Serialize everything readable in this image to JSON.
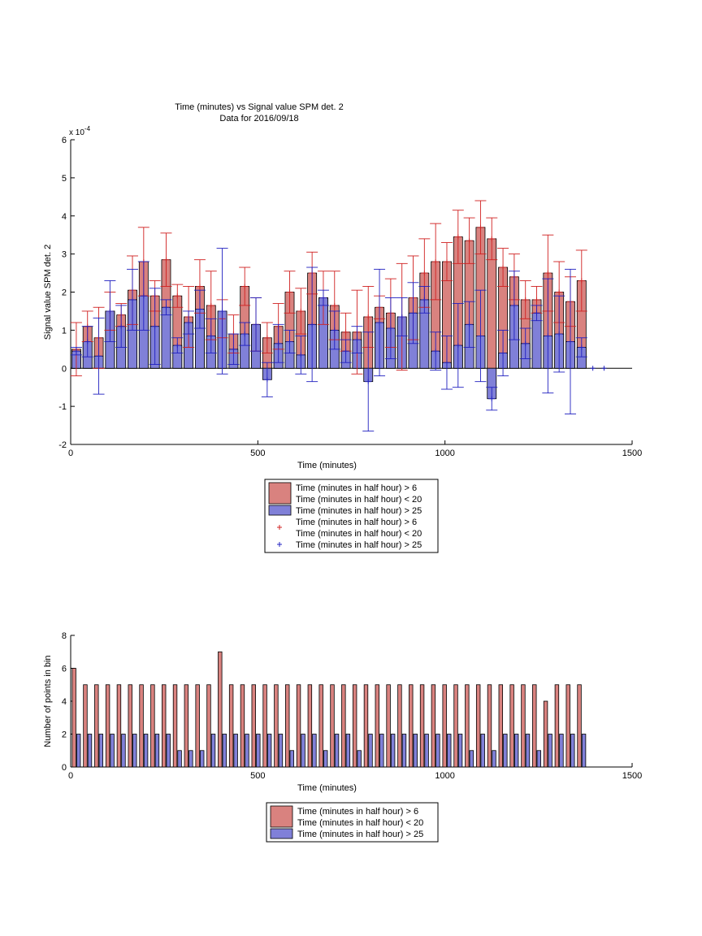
{
  "figure": {
    "title": "Time (minutes) vs Signal value SPM det. 2",
    "subtitle": "Data for 2016/09/18"
  },
  "chart_data": [
    {
      "type": "bar",
      "xlabel": "Time (minutes)",
      "ylabel": "Signal value SPM det. 2",
      "exponent_label": "x 10",
      "exponent_power": "-4",
      "xlim": [
        0,
        1500
      ],
      "ylim": [
        -2,
        6
      ],
      "xticks": [
        "0",
        "500",
        "1000",
        "1500"
      ],
      "yticks": [
        "-2",
        "-1",
        "0",
        "1",
        "2",
        "3",
        "4",
        "5",
        "6"
      ],
      "x": [
        15,
        45,
        75,
        105,
        135,
        165,
        195,
        225,
        255,
        285,
        315,
        345,
        375,
        405,
        435,
        465,
        495,
        525,
        555,
        585,
        615,
        645,
        675,
        705,
        735,
        765,
        795,
        825,
        855,
        885,
        915,
        945,
        975,
        1005,
        1035,
        1065,
        1095,
        1125,
        1155,
        1185,
        1215,
        1245,
        1275,
        1305,
        1335,
        1365
      ],
      "series": [
        {
          "name": "Time (minutes in half hour) > 6\nTime (minutes in half hour) < 20",
          "color": "#d9827f",
          "values": [
            0.5,
            1.1,
            0.8,
            1.5,
            1.4,
            2.05,
            2.8,
            1.9,
            2.85,
            1.9,
            1.35,
            2.15,
            1.65,
            1.3,
            0.9,
            2.15,
            1.15,
            0.8,
            1.1,
            2.0,
            1.5,
            2.5,
            1.85,
            1.65,
            0.95,
            0.95,
            1.35,
            1.6,
            1.45,
            1.35,
            1.85,
            2.5,
            2.8,
            2.8,
            3.45,
            3.35,
            3.7,
            3.4,
            2.65,
            2.4,
            1.8,
            1.8,
            2.5,
            2.0,
            1.75,
            2.3
          ],
          "err": [
            0.7,
            0.4,
            0.8,
            0.5,
            0.3,
            0.9,
            0.9,
            0.4,
            0.7,
            0.3,
            0.8,
            0.7,
            0.9,
            0.5,
            0.5,
            0.5,
            0.7,
            0.4,
            0.6,
            0.55,
            0.6,
            0.55,
            0.7,
            0.9,
            0.5,
            1.1,
            0.8,
            0.3,
            0.9,
            1.4,
            1.1,
            0.9,
            1.0,
            0.5,
            0.7,
            0.6,
            0.7,
            0.55,
            0.5,
            0.6,
            0.5,
            0.35,
            1.0,
            0.8,
            0.65,
            0.8
          ]
        },
        {
          "name": "Time (minutes in half hour) > 25",
          "color": "#8080d8",
          "values": [
            0.45,
            0.7,
            0.32,
            1.5,
            1.1,
            1.8,
            1.9,
            1.1,
            1.6,
            0.6,
            1.2,
            1.55,
            0.85,
            1.5,
            0.5,
            0.9,
            1.15,
            -0.3,
            0.65,
            0.7,
            0.35,
            1.15,
            1.85,
            1.0,
            0.45,
            0.75,
            -0.35,
            1.2,
            1.05,
            1.35,
            1.45,
            1.8,
            0.45,
            0.15,
            0.6,
            1.15,
            0.85,
            -0.8,
            0.4,
            1.65,
            0.65,
            1.45,
            0.85,
            0.9,
            0.7,
            0.55
          ],
          "err": [
            0.1,
            0.4,
            1.0,
            0.8,
            0.55,
            0.8,
            0.9,
            1.0,
            0.2,
            0.2,
            0.3,
            0.5,
            0.45,
            1.65,
            0.4,
            0.3,
            0.7,
            0.45,
            0.5,
            0.3,
            0.5,
            1.5,
            0.2,
            0.5,
            0.3,
            0.35,
            1.3,
            1.4,
            0.8,
            0.5,
            0.8,
            0.35,
            0.5,
            0.7,
            1.1,
            0.6,
            1.2,
            0.3,
            0.6,
            0.9,
            0.4,
            0.2,
            1.5,
            1.0,
            1.9,
            0.25
          ]
        }
      ],
      "markers": [
        {
          "color": "#d02020",
          "points": []
        },
        {
          "color": "#2020c0",
          "points": [
            [
              1395,
              0
            ],
            [
              1425,
              0
            ]
          ]
        }
      ],
      "legend": {
        "placement": "below",
        "entries": [
          {
            "kind": "patch",
            "color": "#d9827f",
            "lines": [
              "Time (minutes in half hour) > 6",
              "Time (minutes in half hour) < 20"
            ]
          },
          {
            "kind": "patch",
            "color": "#8080d8",
            "lines": [
              "Time (minutes in half hour) > 25"
            ]
          },
          {
            "kind": "marker",
            "color": "#d02020",
            "lines": [
              "Time (minutes in half hour) > 6",
              "Time (minutes in half hour) < 20"
            ]
          },
          {
            "kind": "marker",
            "color": "#2020c0",
            "lines": [
              "Time (minutes in half hour) > 25"
            ]
          }
        ]
      },
      "grid": false
    },
    {
      "type": "bar",
      "xlabel": "Time (minutes)",
      "ylabel": "Number of points in bin",
      "xlim": [
        0,
        1500
      ],
      "ylim": [
        0,
        8
      ],
      "xticks": [
        "0",
        "500",
        "1000",
        "1500"
      ],
      "yticks": [
        "0",
        "2",
        "4",
        "6",
        "8"
      ],
      "x": [
        15,
        45,
        75,
        105,
        135,
        165,
        195,
        225,
        255,
        285,
        315,
        345,
        375,
        405,
        435,
        465,
        495,
        525,
        555,
        585,
        615,
        645,
        675,
        705,
        735,
        765,
        795,
        825,
        855,
        885,
        915,
        945,
        975,
        1005,
        1035,
        1065,
        1095,
        1125,
        1155,
        1185,
        1215,
        1245,
        1275,
        1305,
        1335,
        1365
      ],
      "series": [
        {
          "name": "Time (minutes in half hour) > 6\nTime (minutes in half hour) < 20",
          "color": "#d9827f",
          "values": [
            6,
            5,
            5,
            5,
            5,
            5,
            5,
            5,
            5,
            5,
            5,
            5,
            5,
            7,
            5,
            5,
            5,
            5,
            5,
            5,
            5,
            5,
            5,
            5,
            5,
            5,
            5,
            5,
            5,
            5,
            5,
            5,
            5,
            5,
            5,
            5,
            5,
            5,
            5,
            5,
            5,
            5,
            4,
            5,
            5,
            5
          ]
        },
        {
          "name": "Time (minutes in half hour) > 25",
          "color": "#8080d8",
          "values": [
            2,
            2,
            2,
            2,
            2,
            2,
            2,
            2,
            2,
            1,
            1,
            1,
            2,
            2,
            2,
            2,
            2,
            2,
            2,
            1,
            2,
            2,
            1,
            2,
            2,
            1,
            2,
            2,
            2,
            2,
            2,
            2,
            2,
            2,
            2,
            1,
            2,
            1,
            2,
            2,
            2,
            1,
            2,
            2,
            2,
            2
          ]
        }
      ],
      "legend": {
        "placement": "below",
        "entries": [
          {
            "kind": "patch",
            "color": "#d9827f",
            "lines": [
              "Time (minutes in half hour) > 6",
              "Time (minutes in half hour) < 20"
            ]
          },
          {
            "kind": "patch",
            "color": "#8080d8",
            "lines": [
              "Time (minutes in half hour) > 25"
            ]
          }
        ]
      },
      "grid": false
    }
  ]
}
